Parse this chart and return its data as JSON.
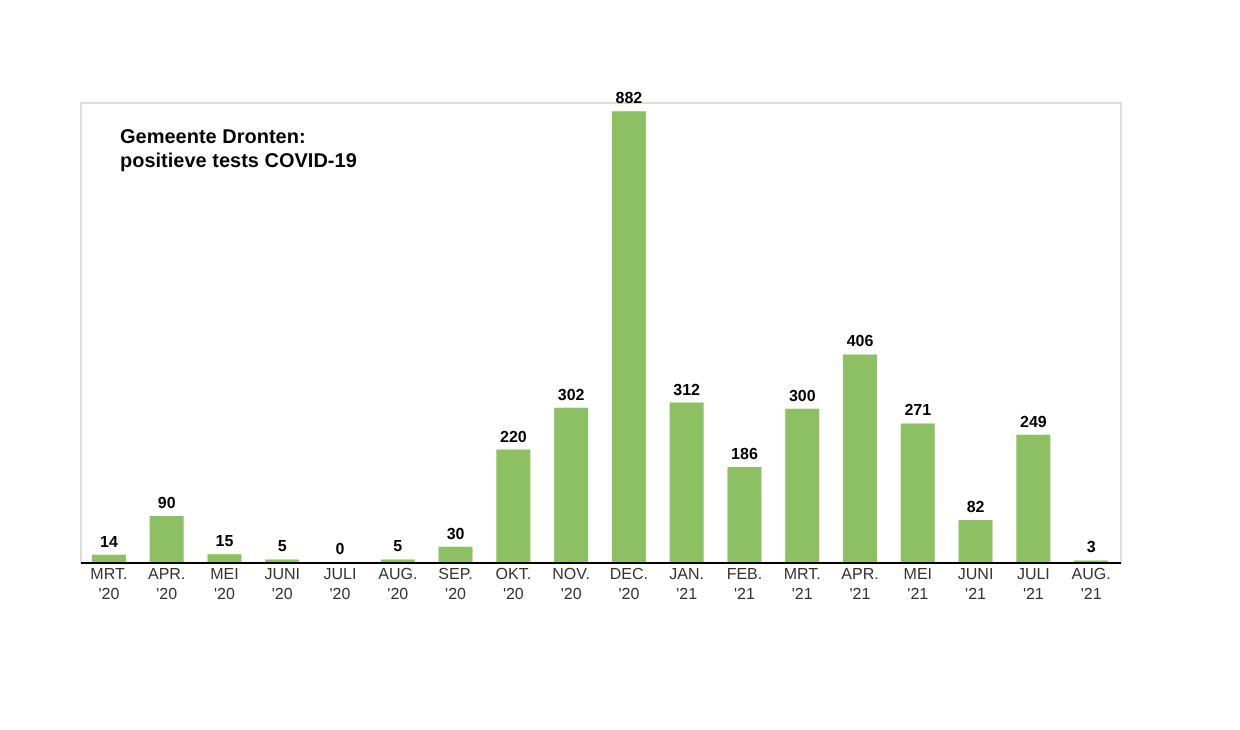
{
  "chart_data": {
    "type": "bar",
    "title": "Gemeente Dronten:\npositieve tests COVID-19",
    "categories": [
      "MRT. '20",
      "APR. '20",
      "MEI '20",
      "JUNI '20",
      "JULI '20",
      "AUG. '20",
      "SEP. '20",
      "OKT. '20",
      "NOV. '20",
      "DEC. '20",
      "JAN. '21",
      "FEB. '21",
      "MRT. '21",
      "APR. '21",
      "MEI '21",
      "JUNI '21",
      "JULI '21",
      "AUG. '21"
    ],
    "values": [
      14,
      90,
      15,
      5,
      0,
      5,
      30,
      220,
      302,
      882,
      312,
      186,
      300,
      406,
      271,
      82,
      249,
      3
    ],
    "color": "#8dc063",
    "ylim": [
      0,
      900
    ],
    "tick_labels": "x",
    "data_labels": true
  }
}
